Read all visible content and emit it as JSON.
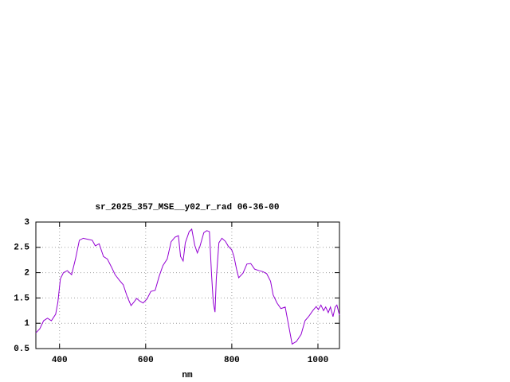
{
  "chart_data": {
    "type": "line",
    "title": "sr_2025_357_MSE__y02_r_rad 06-36-00",
    "xlabel": "nm",
    "x": [
      345,
      354,
      363,
      372,
      381,
      391,
      396,
      402,
      409,
      418,
      428,
      437,
      446,
      455,
      465,
      476,
      483,
      492,
      502,
      511,
      520,
      529,
      539,
      548,
      557,
      566,
      572,
      579,
      586,
      594,
      603,
      612,
      622,
      631,
      640,
      650,
      659,
      668,
      676,
      681,
      687,
      692,
      701,
      707,
      714,
      720,
      726,
      735,
      742,
      748,
      753,
      757,
      761,
      764,
      770,
      777,
      785,
      792,
      800,
      805,
      811,
      816,
      826,
      835,
      844,
      853,
      863,
      872,
      881,
      890,
      896,
      905,
      914,
      924,
      933,
      940,
      950,
      961,
      970,
      979,
      988,
      996,
      1001,
      1007,
      1013,
      1018,
      1024,
      1029,
      1035,
      1040,
      1044,
      1050
    ],
    "series": [
      {
        "color": "#9400d3",
        "values": [
          0.81,
          0.89,
          1.05,
          1.1,
          1.05,
          1.18,
          1.41,
          1.88,
          2.0,
          2.04,
          1.96,
          2.27,
          2.64,
          2.68,
          2.66,
          2.64,
          2.53,
          2.57,
          2.32,
          2.27,
          2.12,
          1.96,
          1.85,
          1.76,
          1.53,
          1.35,
          1.41,
          1.49,
          1.44,
          1.4,
          1.48,
          1.63,
          1.65,
          1.92,
          2.14,
          2.27,
          2.61,
          2.7,
          2.73,
          2.32,
          2.23,
          2.59,
          2.81,
          2.86,
          2.54,
          2.39,
          2.52,
          2.79,
          2.83,
          2.81,
          1.96,
          1.41,
          1.22,
          1.88,
          2.59,
          2.68,
          2.62,
          2.52,
          2.45,
          2.32,
          2.07,
          1.9,
          1.99,
          2.17,
          2.18,
          2.07,
          2.04,
          2.02,
          1.98,
          1.83,
          1.56,
          1.4,
          1.29,
          1.32,
          0.91,
          0.59,
          0.64,
          0.78,
          1.05,
          1.14,
          1.25,
          1.33,
          1.27,
          1.36,
          1.25,
          1.32,
          1.21,
          1.32,
          1.13,
          1.32,
          1.36,
          1.16
        ]
      }
    ],
    "xlim": [
      345,
      1050
    ],
    "xticks": [
      400,
      600,
      800,
      1000
    ],
    "ylim": [
      0.5,
      3
    ],
    "yticks": [
      0.5,
      1,
      1.5,
      2,
      2.5,
      3
    ],
    "grid": true
  }
}
